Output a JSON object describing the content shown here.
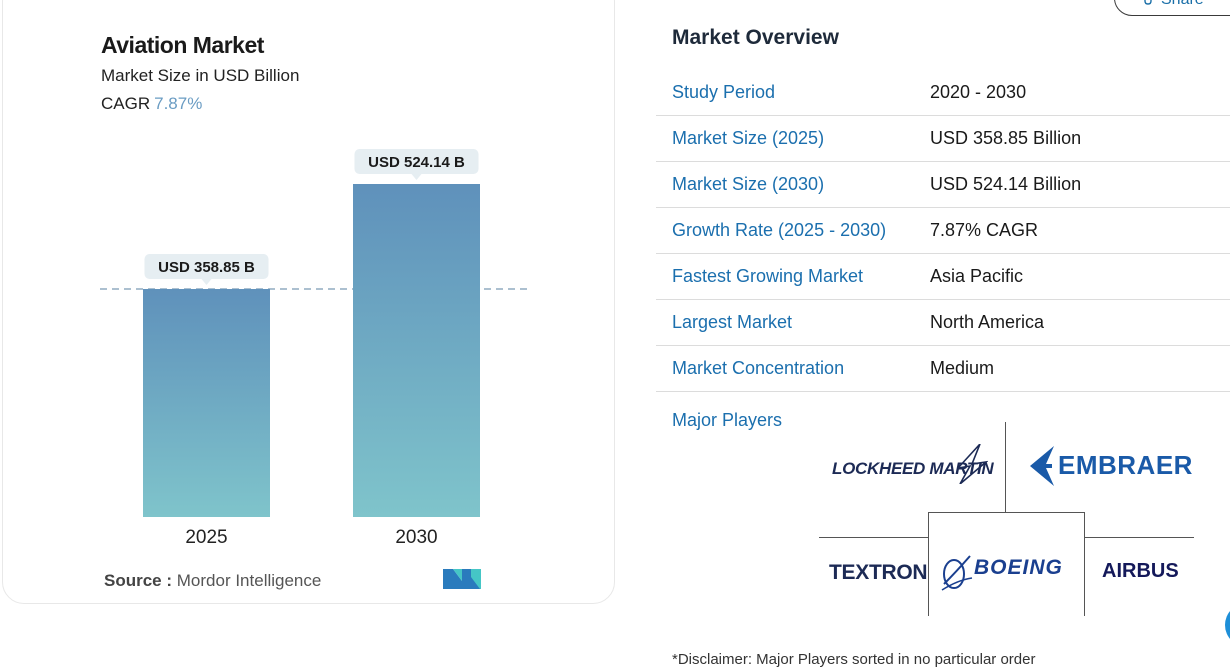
{
  "chart_card": {
    "title": "Aviation Market",
    "subtitle": "Market Size in USD Billion",
    "cagr_label": "CAGR",
    "cagr_value": "7.87%",
    "source_label": "Source :",
    "source_value": "Mordor Intelligence"
  },
  "chart_data": {
    "type": "bar",
    "categories": [
      "2025",
      "2030"
    ],
    "values": [
      358.85,
      524.14
    ],
    "data_labels": [
      "USD 358.85 B",
      "USD 524.14 B"
    ],
    "title": "Aviation Market",
    "subtitle": "Market Size in USD Billion",
    "xlabel": "",
    "ylabel": "",
    "ylim": [
      0,
      524.14
    ],
    "grid": false,
    "reference_line": 358.85,
    "colors": {
      "bar_top": "#5f91bb",
      "bar_bottom": "#7fc4cb",
      "label_bg": "#e6eef2",
      "dash": "#7a9bb5"
    }
  },
  "share_button": {
    "label": "Share"
  },
  "overview": {
    "title": "Market Overview",
    "rows": [
      {
        "label": "Study Period",
        "value": "2020 - 2030"
      },
      {
        "label": "Market Size (2025)",
        "value": "USD 358.85 Billion"
      },
      {
        "label": "Market Size (2030)",
        "value": "USD 524.14 Billion"
      },
      {
        "label": "Growth Rate (2025 - 2030)",
        "value": "7.87% CAGR"
      },
      {
        "label": "Fastest Growing Market",
        "value": "Asia Pacific"
      },
      {
        "label": "Largest Market",
        "value": "North America"
      },
      {
        "label": "Market Concentration",
        "value": "Medium"
      }
    ],
    "major_players_title": "Major Players",
    "players": [
      "LOCKHEED MARTIN",
      "EMBRAER",
      "TEXTRON",
      "BOEING",
      "AIRBUS"
    ],
    "disclaimer": "*Disclaimer: Major Players sorted in no particular order"
  },
  "colors": {
    "link_blue": "#1b6fae",
    "accent": "#6a9cc3"
  }
}
